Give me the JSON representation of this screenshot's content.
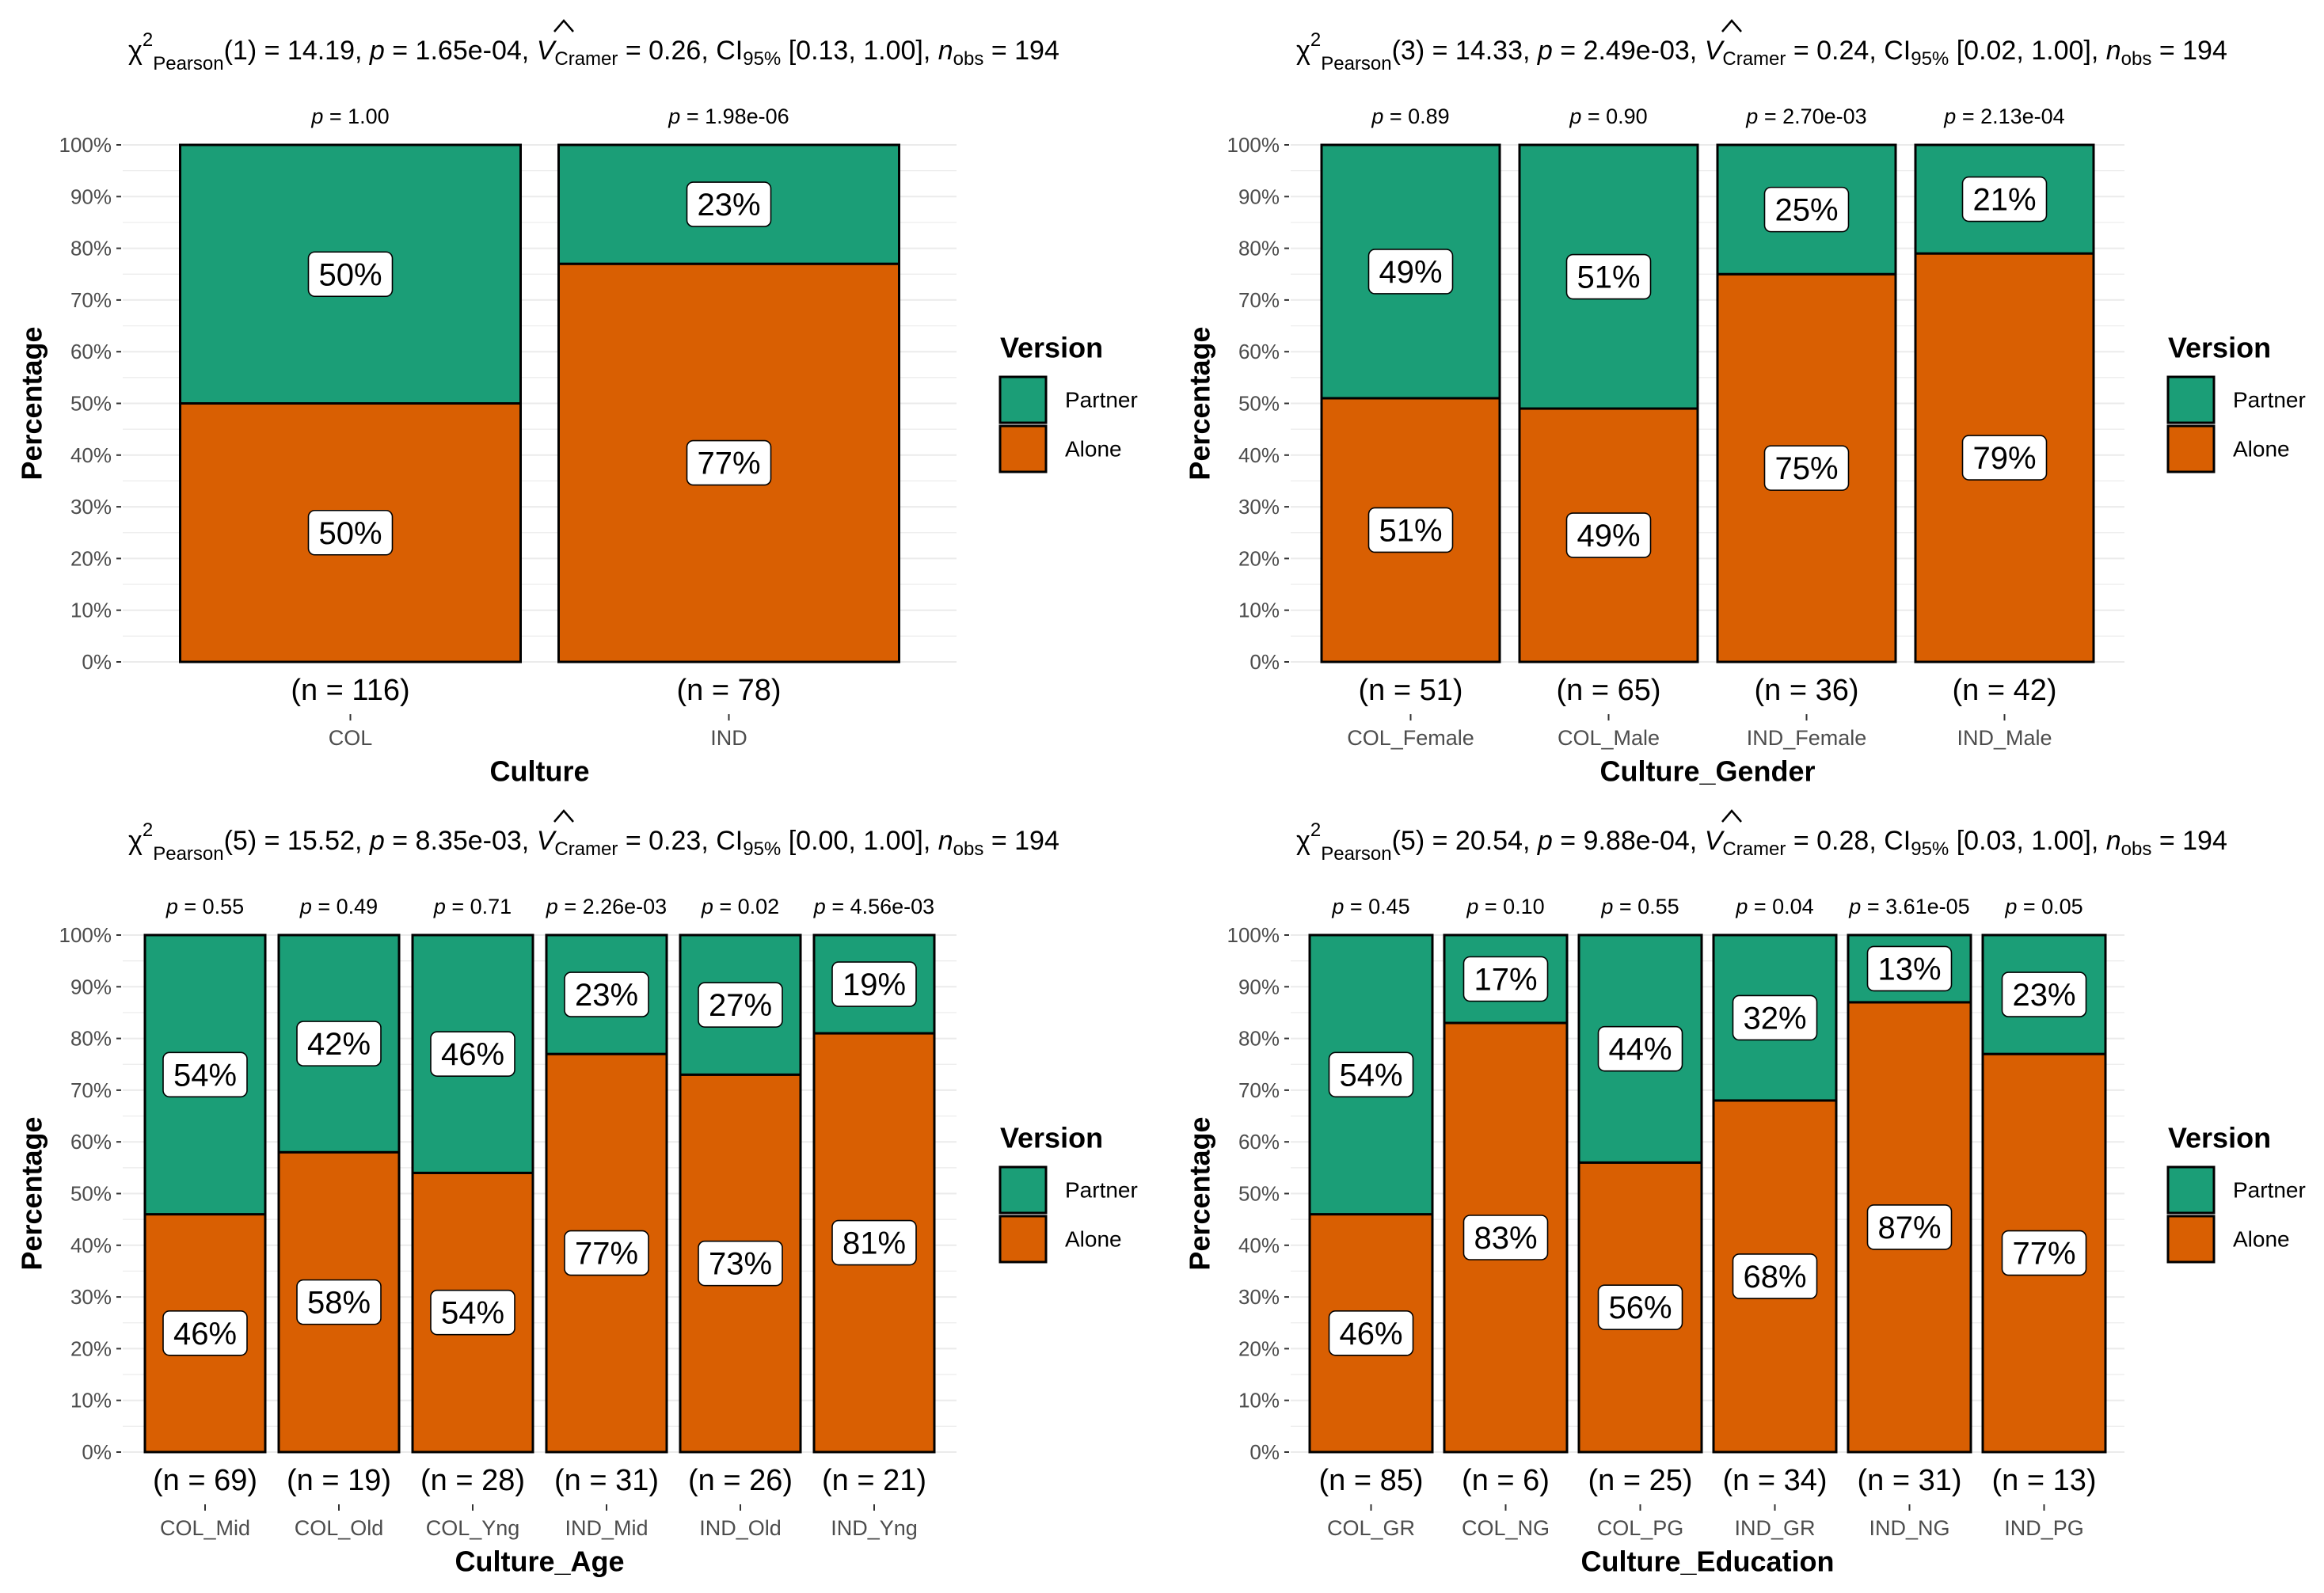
{
  "colors": {
    "partner": "#1B9E77",
    "alone": "#D95F02",
    "outline": "#000000",
    "grid": "#EBEBEB",
    "text": "#000000",
    "axis_text": "#4D4D4D"
  },
  "chart_data": [
    {
      "type": "bar",
      "stacked": "percent",
      "subtitle": {
        "chi_df": "1",
        "chi_val": "14.19",
        "p": "1.65e-04",
        "v": "0.26",
        "ci": "[0.13, 1.00]",
        "n": "194"
      },
      "xlabel": "Culture",
      "ylabel": "Percentage",
      "ylim": [
        0,
        100
      ],
      "yticks": [
        "0%",
        "10%",
        "20%",
        "30%",
        "40%",
        "50%",
        "60%",
        "70%",
        "80%",
        "90%",
        "100%"
      ],
      "legend": {
        "title": "Version",
        "items": [
          "Partner",
          "Alone"
        ],
        "position": "right"
      },
      "categories": [
        "COL",
        "IND"
      ],
      "p_labels": [
        "1.00",
        "1.98e-06"
      ],
      "counts": [
        "(n = 116)",
        "(n = 78)"
      ],
      "series": [
        {
          "name": "Alone",
          "values": [
            50,
            77
          ],
          "labels": [
            "50%",
            "77%"
          ]
        },
        {
          "name": "Partner",
          "values": [
            50,
            23
          ],
          "labels": [
            "50%",
            "23%"
          ]
        }
      ]
    },
    {
      "type": "bar",
      "stacked": "percent",
      "subtitle": {
        "chi_df": "3",
        "chi_val": "14.33",
        "p": "2.49e-03",
        "v": "0.24",
        "ci": "[0.02, 1.00]",
        "n": "194"
      },
      "xlabel": "Culture_Gender",
      "ylabel": "Percentage",
      "ylim": [
        0,
        100
      ],
      "yticks": [
        "0%",
        "10%",
        "20%",
        "30%",
        "40%",
        "50%",
        "60%",
        "70%",
        "80%",
        "90%",
        "100%"
      ],
      "legend": {
        "title": "Version",
        "items": [
          "Partner",
          "Alone"
        ],
        "position": "right"
      },
      "categories": [
        "COL_Female",
        "COL_Male",
        "IND_Female",
        "IND_Male"
      ],
      "p_labels": [
        "0.89",
        "0.90",
        "2.70e-03",
        "2.13e-04"
      ],
      "counts": [
        "(n = 51)",
        "(n = 65)",
        "(n = 36)",
        "(n = 42)"
      ],
      "series": [
        {
          "name": "Alone",
          "values": [
            51,
            49,
            75,
            79
          ],
          "labels": [
            "51%",
            "49%",
            "75%",
            "79%"
          ]
        },
        {
          "name": "Partner",
          "values": [
            49,
            51,
            25,
            21
          ],
          "labels": [
            "49%",
            "51%",
            "25%",
            "21%"
          ]
        }
      ]
    },
    {
      "type": "bar",
      "stacked": "percent",
      "subtitle": {
        "chi_df": "5",
        "chi_val": "15.52",
        "p": "8.35e-03",
        "v": "0.23",
        "ci": "[0.00, 1.00]",
        "n": "194"
      },
      "xlabel": "Culture_Age",
      "ylabel": "Percentage",
      "ylim": [
        0,
        100
      ],
      "yticks": [
        "0%",
        "10%",
        "20%",
        "30%",
        "40%",
        "50%",
        "60%",
        "70%",
        "80%",
        "90%",
        "100%"
      ],
      "legend": {
        "title": "Version",
        "items": [
          "Partner",
          "Alone"
        ],
        "position": "right"
      },
      "categories": [
        "COL_Mid",
        "COL_Old",
        "COL_Yng",
        "IND_Mid",
        "IND_Old",
        "IND_Yng"
      ],
      "p_labels": [
        "0.55",
        "0.49",
        "0.71",
        "2.26e-03",
        "0.02",
        "4.56e-03"
      ],
      "counts": [
        "(n = 69)",
        "(n = 19)",
        "(n = 28)",
        "(n = 31)",
        "(n = 26)",
        "(n = 21)"
      ],
      "series": [
        {
          "name": "Alone",
          "values": [
            46,
            58,
            54,
            77,
            73,
            81
          ],
          "labels": [
            "46%",
            "58%",
            "54%",
            "77%",
            "73%",
            "81%"
          ]
        },
        {
          "name": "Partner",
          "values": [
            54,
            42,
            46,
            23,
            27,
            19
          ],
          "labels": [
            "54%",
            "42%",
            "46%",
            "23%",
            "27%",
            "19%"
          ]
        }
      ]
    },
    {
      "type": "bar",
      "stacked": "percent",
      "subtitle": {
        "chi_df": "5",
        "chi_val": "20.54",
        "p": "9.88e-04",
        "v": "0.28",
        "ci": "[0.03, 1.00]",
        "n": "194"
      },
      "xlabel": "Culture_Education",
      "ylabel": "Percentage",
      "ylim": [
        0,
        100
      ],
      "yticks": [
        "0%",
        "10%",
        "20%",
        "30%",
        "40%",
        "50%",
        "60%",
        "70%",
        "80%",
        "90%",
        "100%"
      ],
      "legend": {
        "title": "Version",
        "items": [
          "Partner",
          "Alone"
        ],
        "position": "right"
      },
      "categories": [
        "COL_GR",
        "COL_NG",
        "COL_PG",
        "IND_GR",
        "IND_NG",
        "IND_PG"
      ],
      "p_labels": [
        "0.45",
        "0.10",
        "0.55",
        "0.04",
        "3.61e-05",
        "0.05"
      ],
      "counts": [
        "(n = 85)",
        "(n = 6)",
        "(n = 25)",
        "(n = 34)",
        "(n = 31)",
        "(n = 13)"
      ],
      "series": [
        {
          "name": "Alone",
          "values": [
            46,
            83,
            56,
            68,
            87,
            77
          ],
          "labels": [
            "46%",
            "83%",
            "56%",
            "68%",
            "87%",
            "77%"
          ]
        },
        {
          "name": "Partner",
          "values": [
            54,
            17,
            44,
            32,
            13,
            23
          ],
          "labels": [
            "54%",
            "17%",
            "44%",
            "32%",
            "13%",
            "23%"
          ]
        }
      ]
    }
  ]
}
